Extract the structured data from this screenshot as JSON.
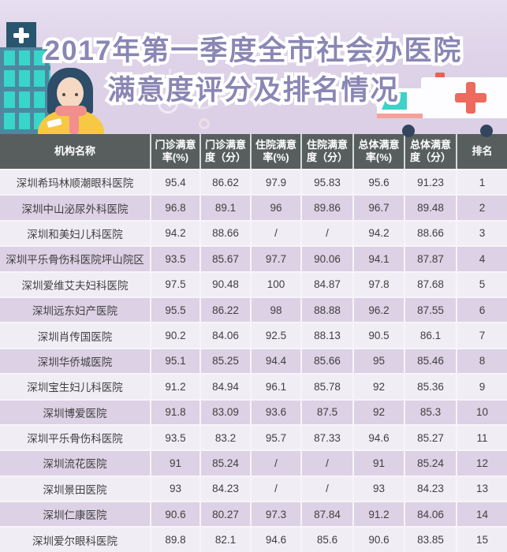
{
  "banner": {
    "title_line1": "2017年第一季度全市社会办医院",
    "title_line2": "满意度评分及排名情况",
    "title_color": "#8a86b4",
    "title_outline_color": "#ffffff",
    "background_color": "#ddd2e7"
  },
  "colors": {
    "header_background": "#585e5e",
    "header_text": "#ffffff",
    "row_light": "#f1edf5",
    "row_dark": "#ddd1e5",
    "cell_text": "#3f3f3f",
    "building_body": "#4d88a0",
    "building_window": "#38d5cb",
    "building_sign": "#28566f",
    "ambulance_cross": "#ec6a5e",
    "ambulance_window": "#3ed2c8",
    "wheel": "#32455c",
    "nurse_hair": "#2d4d68",
    "nurse_scarf": "#f28e8e",
    "nurse_shirt": "#f6c844"
  },
  "table": {
    "columns": [
      {
        "label": "机构名称",
        "lines": [
          "机构名称"
        ]
      },
      {
        "label": "门诊满意率(%)",
        "lines": [
          "门诊满意",
          "率(%)"
        ]
      },
      {
        "label": "门诊满意度（分）",
        "lines": [
          "门诊满意",
          "度（分）"
        ]
      },
      {
        "label": "住院满意率(%)",
        "lines": [
          "住院满意",
          "率(%)"
        ]
      },
      {
        "label": "住院满意度（分）",
        "lines": [
          "住院满意",
          "度（分）"
        ]
      },
      {
        "label": "总体满意率(%)",
        "lines": [
          "总体满意",
          "率(%)"
        ]
      },
      {
        "label": "总体满意度（分）",
        "lines": [
          "总体满意",
          "度（分）"
        ]
      },
      {
        "label": "排名",
        "lines": [
          "排名"
        ]
      }
    ],
    "rows": [
      [
        "深圳希玛林顺潮眼科医院",
        "95.4",
        "86.62",
        "97.9",
        "95.83",
        "95.6",
        "91.23",
        "1"
      ],
      [
        "深圳中山泌尿外科医院",
        "96.8",
        "89.1",
        "96",
        "89.86",
        "96.7",
        "89.48",
        "2"
      ],
      [
        "深圳和美妇儿科医院",
        "94.2",
        "88.66",
        "/",
        "/",
        "94.2",
        "88.66",
        "3"
      ],
      [
        "深圳平乐骨伤科医院坪山院区",
        "93.5",
        "85.67",
        "97.7",
        "90.06",
        "94.1",
        "87.87",
        "4"
      ],
      [
        "深圳爱维艾夫妇科医院",
        "97.5",
        "90.48",
        "100",
        "84.87",
        "97.8",
        "87.68",
        "5"
      ],
      [
        "深圳远东妇产医院",
        "95.5",
        "86.22",
        "98",
        "88.88",
        "96.2",
        "87.55",
        "6"
      ],
      [
        "深圳肖传国医院",
        "90.2",
        "84.06",
        "92.5",
        "88.13",
        "90.5",
        "86.1",
        "7"
      ],
      [
        "深圳华侨城医院",
        "95.1",
        "85.25",
        "94.4",
        "85.66",
        "95",
        "85.46",
        "8"
      ],
      [
        "深圳宝生妇儿科医院",
        "91.2",
        "84.94",
        "96.1",
        "85.78",
        "92",
        "85.36",
        "9"
      ],
      [
        "深圳博爱医院",
        "91.8",
        "83.09",
        "93.6",
        "87.5",
        "92",
        "85.3",
        "10"
      ],
      [
        "深圳平乐骨伤科医院",
        "93.5",
        "83.2",
        "95.7",
        "87.33",
        "94.6",
        "85.27",
        "11"
      ],
      [
        "深圳流花医院",
        "91",
        "85.24",
        "/",
        "/",
        "91",
        "85.24",
        "12"
      ],
      [
        "深圳景田医院",
        "93",
        "84.23",
        "/",
        "/",
        "93",
        "84.23",
        "13"
      ],
      [
        "深圳仁康医院",
        "90.6",
        "80.27",
        "97.3",
        "87.84",
        "91.2",
        "84.06",
        "14"
      ],
      [
        "深圳爱尔眼科医院",
        "89.8",
        "82.1",
        "94.6",
        "85.6",
        "90.6",
        "83.85",
        "15"
      ]
    ]
  },
  "chart_data": {
    "type": "table",
    "title": "2017年第一季度全市社会办医院满意度评分及排名情况",
    "columns": [
      "机构名称",
      "门诊满意率(%)",
      "门诊满意度（分）",
      "住院满意率(%)",
      "住院满意度（分）",
      "总体满意率(%)",
      "总体满意度（分）",
      "排名"
    ],
    "rows": [
      [
        "深圳希玛林顺潮眼科医院",
        95.4,
        86.62,
        97.9,
        95.83,
        95.6,
        91.23,
        1
      ],
      [
        "深圳中山泌尿外科医院",
        96.8,
        89.1,
        96,
        89.86,
        96.7,
        89.48,
        2
      ],
      [
        "深圳和美妇儿科医院",
        94.2,
        88.66,
        null,
        null,
        94.2,
        88.66,
        3
      ],
      [
        "深圳平乐骨伤科医院坪山院区",
        93.5,
        85.67,
        97.7,
        90.06,
        94.1,
        87.87,
        4
      ],
      [
        "深圳爱维艾夫妇科医院",
        97.5,
        90.48,
        100,
        84.87,
        97.8,
        87.68,
        5
      ],
      [
        "深圳远东妇产医院",
        95.5,
        86.22,
        98,
        88.88,
        96.2,
        87.55,
        6
      ],
      [
        "深圳肖传国医院",
        90.2,
        84.06,
        92.5,
        88.13,
        90.5,
        86.1,
        7
      ],
      [
        "深圳华侨城医院",
        95.1,
        85.25,
        94.4,
        85.66,
        95,
        85.46,
        8
      ],
      [
        "深圳宝生妇儿科医院",
        91.2,
        84.94,
        96.1,
        85.78,
        92,
        85.36,
        9
      ],
      [
        "深圳博爱医院",
        91.8,
        83.09,
        93.6,
        87.5,
        92,
        85.3,
        10
      ],
      [
        "深圳平乐骨伤科医院",
        93.5,
        83.2,
        95.7,
        87.33,
        94.6,
        85.27,
        11
      ],
      [
        "深圳流花医院",
        91,
        85.24,
        null,
        null,
        91,
        85.24,
        12
      ],
      [
        "深圳景田医院",
        93,
        84.23,
        null,
        null,
        93,
        84.23,
        13
      ],
      [
        "深圳仁康医院",
        90.6,
        80.27,
        97.3,
        87.84,
        91.2,
        84.06,
        14
      ],
      [
        "深圳爱尔眼科医院",
        89.8,
        82.1,
        94.6,
        85.6,
        90.6,
        83.85,
        15
      ]
    ],
    "missing_value_marker": "/"
  }
}
